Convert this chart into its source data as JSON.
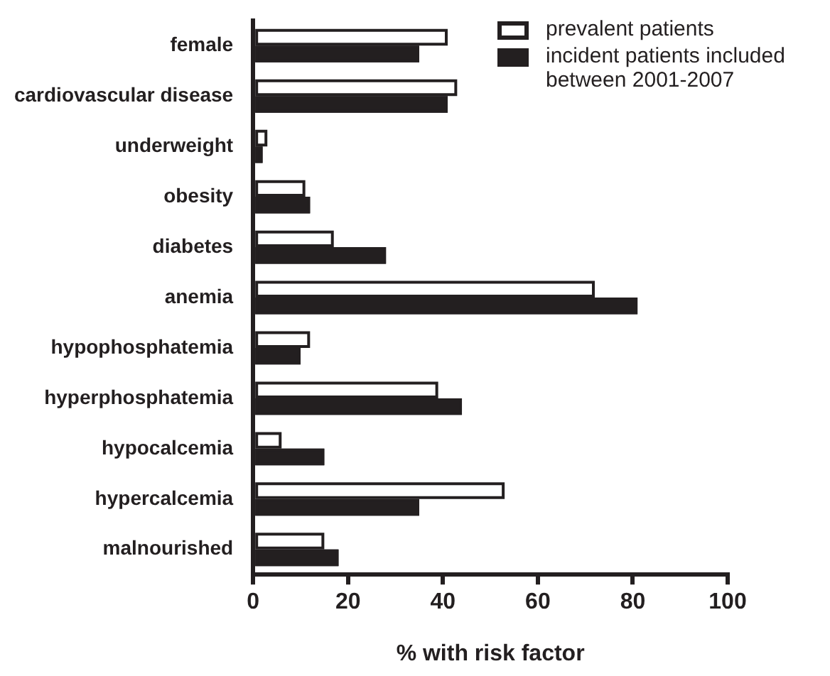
{
  "chart_data": {
    "type": "bar",
    "orientation": "horizontal",
    "xlabel": "% with risk factor",
    "categories": [
      "female",
      "cardiovascular disease",
      "underweight",
      "obesity",
      "diabetes",
      "anemia",
      "hypophosphatemia",
      "hyperphosphatemia",
      "hypocalcemia",
      "hypercalcemia",
      "malnourished"
    ],
    "series": [
      {
        "name": "prevalent patients",
        "color": "#ffffff",
        "values": [
          41,
          43,
          3,
          11,
          17,
          72,
          12,
          39,
          6,
          53,
          15
        ]
      },
      {
        "name": "incident patients included between 2001-2007",
        "color": "#231f20",
        "values": [
          35,
          41,
          2,
          12,
          28,
          81,
          10,
          44,
          15,
          35,
          18
        ]
      }
    ],
    "xlim": [
      0,
      100
    ],
    "xticks": [
      0,
      20,
      40,
      60,
      80,
      100
    ],
    "legend": "top right"
  }
}
